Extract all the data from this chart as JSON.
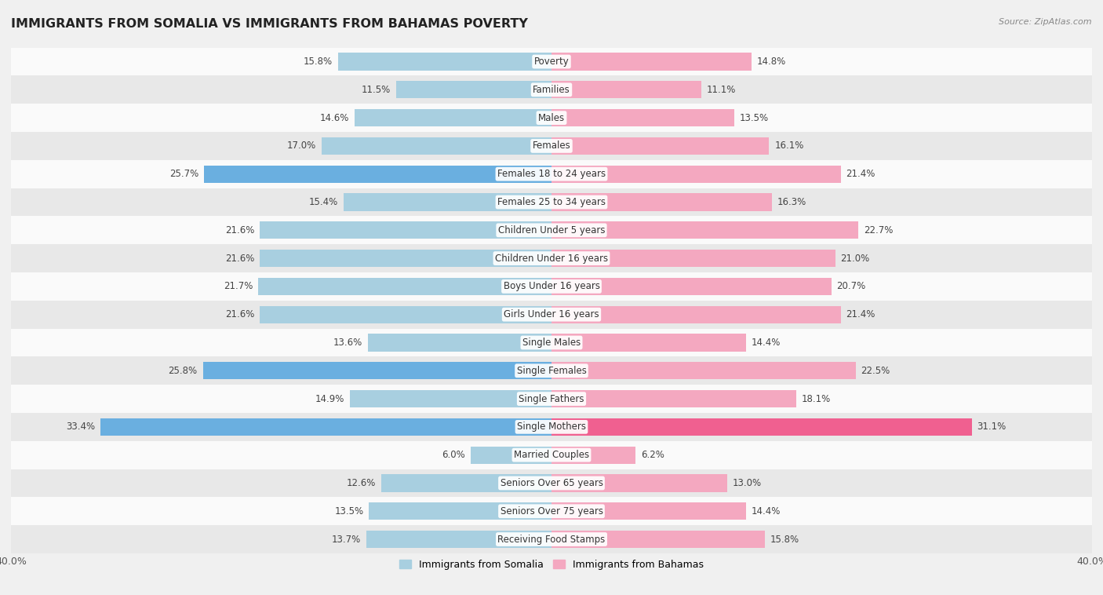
{
  "title": "IMMIGRANTS FROM SOMALIA VS IMMIGRANTS FROM BAHAMAS POVERTY",
  "source": "Source: ZipAtlas.com",
  "categories": [
    "Poverty",
    "Families",
    "Males",
    "Females",
    "Females 18 to 24 years",
    "Females 25 to 34 years",
    "Children Under 5 years",
    "Children Under 16 years",
    "Boys Under 16 years",
    "Girls Under 16 years",
    "Single Males",
    "Single Females",
    "Single Fathers",
    "Single Mothers",
    "Married Couples",
    "Seniors Over 65 years",
    "Seniors Over 75 years",
    "Receiving Food Stamps"
  ],
  "somalia_values": [
    15.8,
    11.5,
    14.6,
    17.0,
    25.7,
    15.4,
    21.6,
    21.6,
    21.7,
    21.6,
    13.6,
    25.8,
    14.9,
    33.4,
    6.0,
    12.6,
    13.5,
    13.7
  ],
  "bahamas_values": [
    14.8,
    11.1,
    13.5,
    16.1,
    21.4,
    16.3,
    22.7,
    21.0,
    20.7,
    21.4,
    14.4,
    22.5,
    18.1,
    31.1,
    6.2,
    13.0,
    14.4,
    15.8
  ],
  "somalia_color": "#a8cfe0",
  "bahamas_color": "#f4a8c0",
  "somalia_highlight_color": "#6aafe0",
  "bahamas_highlight_color": "#f06090",
  "xlim": 40.0,
  "bar_height": 0.62,
  "bg_color": "#f0f0f0",
  "row_color_light": "#fafafa",
  "row_color_dark": "#e8e8e8",
  "value_fontsize": 8.5,
  "label_fontsize": 8.5,
  "title_fontsize": 11.5,
  "legend_somalia": "Immigrants from Somalia",
  "legend_bahamas": "Immigrants from Bahamas",
  "highlight_threshold": 24.0
}
